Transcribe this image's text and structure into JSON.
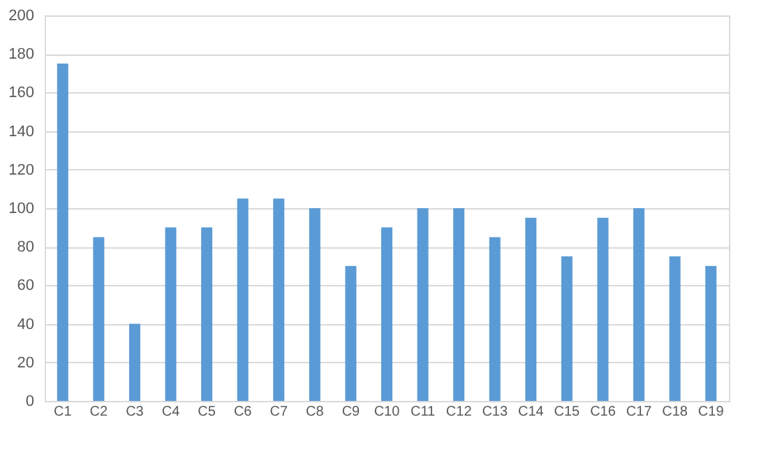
{
  "chart_data": {
    "type": "bar",
    "categories": [
      "C1",
      "C2",
      "C3",
      "C4",
      "C5",
      "C6",
      "C7",
      "C8",
      "C9",
      "C10",
      "C11",
      "C12",
      "C13",
      "C14",
      "C15",
      "C16",
      "C17",
      "C18",
      "C19"
    ],
    "values": [
      175,
      85,
      40,
      90,
      90,
      105,
      105,
      100,
      70,
      90,
      100,
      100,
      85,
      95,
      75,
      95,
      100,
      75,
      70
    ],
    "color": "#5b9bd5",
    "ylim": [
      0,
      200
    ],
    "yticks": [
      0,
      20,
      40,
      60,
      80,
      100,
      120,
      140,
      160,
      180,
      200
    ],
    "grid": "y"
  }
}
